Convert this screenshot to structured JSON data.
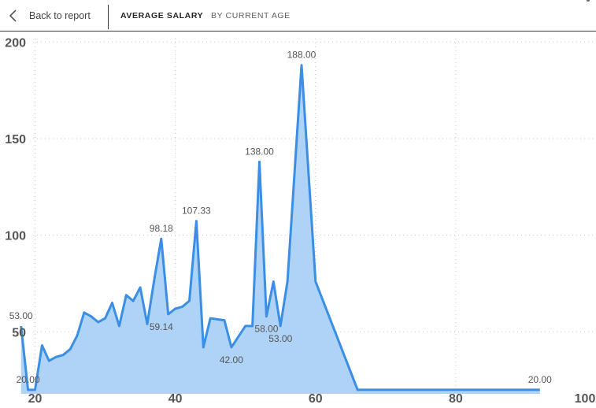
{
  "header": {
    "back_label": "Back to report",
    "tabs": [
      {
        "label": "AVERAGE SALARY",
        "active": true
      },
      {
        "label": "BY CURRENT AGE",
        "active": false
      }
    ]
  },
  "chart_data": {
    "type": "area",
    "xlim": [
      15,
      100
    ],
    "ylim": [
      22,
      205
    ],
    "x_ticks": [
      20,
      40,
      60,
      80,
      100
    ],
    "y_ticks": [
      50,
      100,
      150,
      200
    ],
    "grid": true,
    "line_color": "#3a8ee6",
    "fill_color": "#afd3f6",
    "series": [
      {
        "x": [
          18,
          19,
          20,
          21,
          22,
          23,
          24,
          25,
          26,
          27,
          28,
          29,
          30,
          31,
          32,
          33,
          34,
          35,
          36,
          37,
          38,
          39,
          40,
          41,
          42,
          43,
          44,
          45,
          47,
          48,
          50,
          51,
          52,
          53,
          54,
          55,
          56,
          58,
          60,
          66,
          92
        ],
        "y": [
          53,
          20,
          20,
          43,
          35,
          37,
          38,
          41,
          48,
          60,
          58,
          55,
          57,
          65,
          53,
          69,
          66,
          73,
          54,
          77,
          98.18,
          59.14,
          62,
          63,
          66,
          107.33,
          42,
          57,
          56,
          42,
          53,
          53,
          138,
          58,
          76,
          53,
          76,
          188,
          76,
          20,
          20
        ]
      }
    ],
    "data_labels": [
      {
        "x": 18,
        "y": 53,
        "text": "53.00",
        "pos": "above"
      },
      {
        "x": 19,
        "y": 20,
        "text": "20.00",
        "pos": "above"
      },
      {
        "x": 38,
        "y": 98.18,
        "text": "98.18",
        "pos": "above"
      },
      {
        "x": 38,
        "y": 59.14,
        "text": "59.14",
        "pos": "below"
      },
      {
        "x": 43,
        "y": 107.33,
        "text": "107.33",
        "pos": "above"
      },
      {
        "x": 48,
        "y": 42,
        "text": "42.00",
        "pos": "below"
      },
      {
        "x": 52,
        "y": 138,
        "text": "138.00",
        "pos": "above"
      },
      {
        "x": 53,
        "y": 58,
        "text": "58.00",
        "pos": "below"
      },
      {
        "x": 55,
        "y": 53,
        "text": "53.00",
        "pos": "below"
      },
      {
        "x": 58,
        "y": 188,
        "text": "188.00",
        "pos": "above"
      },
      {
        "x": 92,
        "y": 20,
        "text": "20.00",
        "pos": "above"
      }
    ]
  }
}
